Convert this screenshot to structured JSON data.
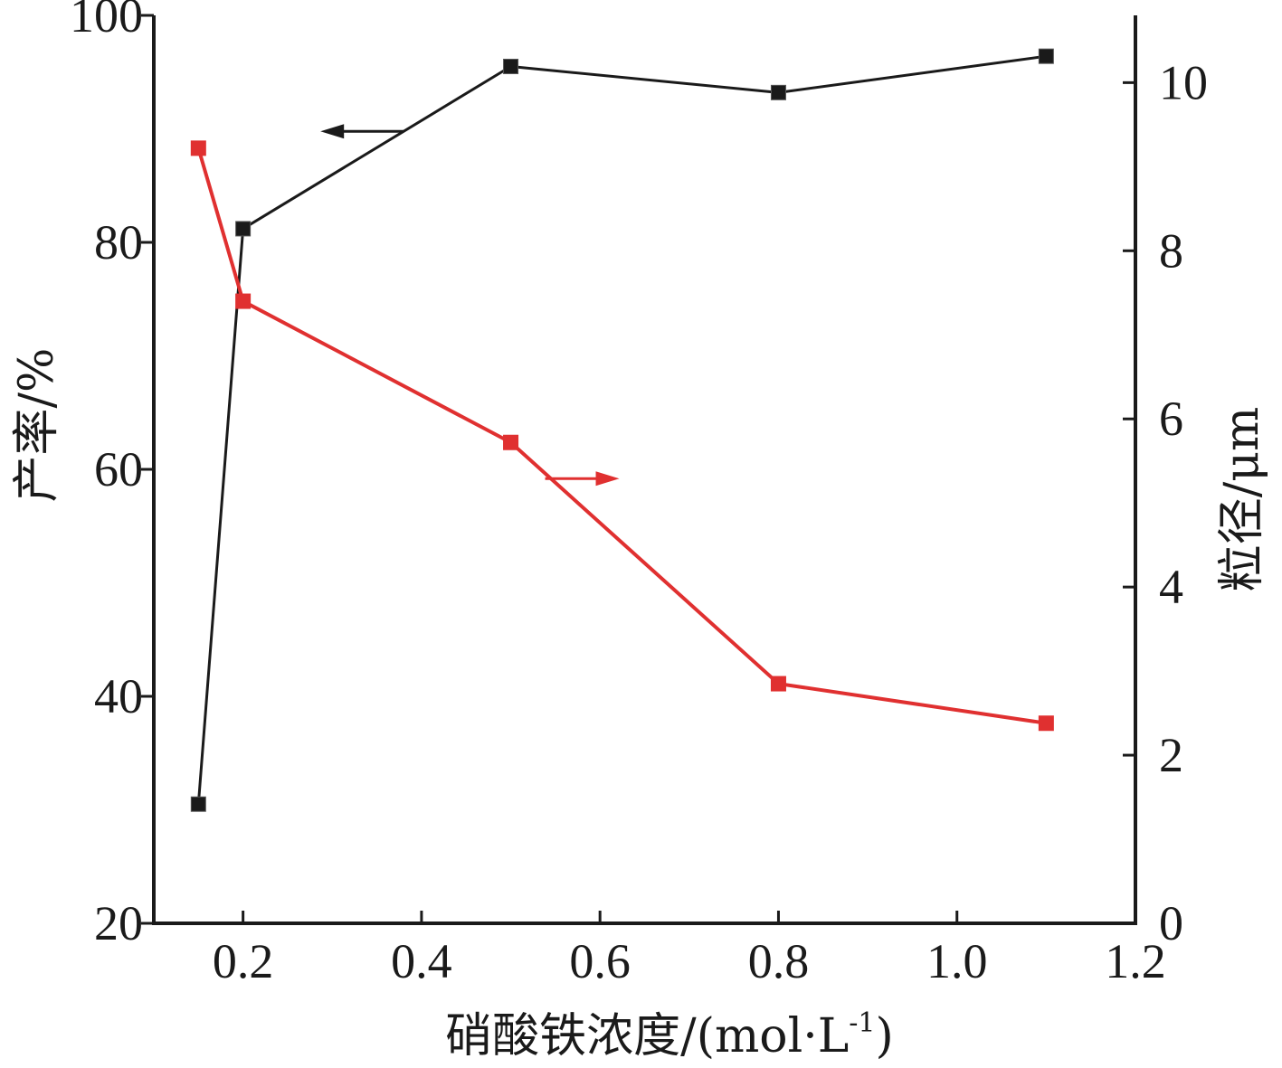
{
  "chart_data": {
    "type": "line",
    "xlabel": "硝酸铁浓度/(mol·L",
    "xlabel_sup": "-1",
    "xlabel_end": ")",
    "ylabel_left": "产率/%",
    "ylabel_right": "粒径/μm",
    "xlim": [
      0.1,
      1.2
    ],
    "ylim_left": [
      20,
      100
    ],
    "ylim_right": [
      0,
      10.8
    ],
    "xticks": [
      "0.2",
      "0.4",
      "0.6",
      "0.8",
      "1.0",
      "1.2"
    ],
    "yticks_left": [
      "20",
      "40",
      "60",
      "80",
      "100"
    ],
    "yticks_right": [
      "0",
      "2",
      "4",
      "6",
      "8",
      "10"
    ],
    "grid": false,
    "series": [
      {
        "axis": "left",
        "color": "#1a1a1a",
        "marker": "square",
        "x": [
          0.15,
          0.2,
          0.5,
          0.8,
          1.1
        ],
        "values": [
          30.5,
          81.2,
          95.5,
          93.2,
          96.4
        ],
        "arrow": "left"
      },
      {
        "axis": "right",
        "color": "#e03030",
        "marker": "square",
        "x": [
          0.15,
          0.2,
          0.5,
          0.8,
          1.1
        ],
        "values": [
          9.22,
          7.4,
          5.72,
          2.85,
          2.38
        ],
        "arrow": "right"
      }
    ]
  }
}
